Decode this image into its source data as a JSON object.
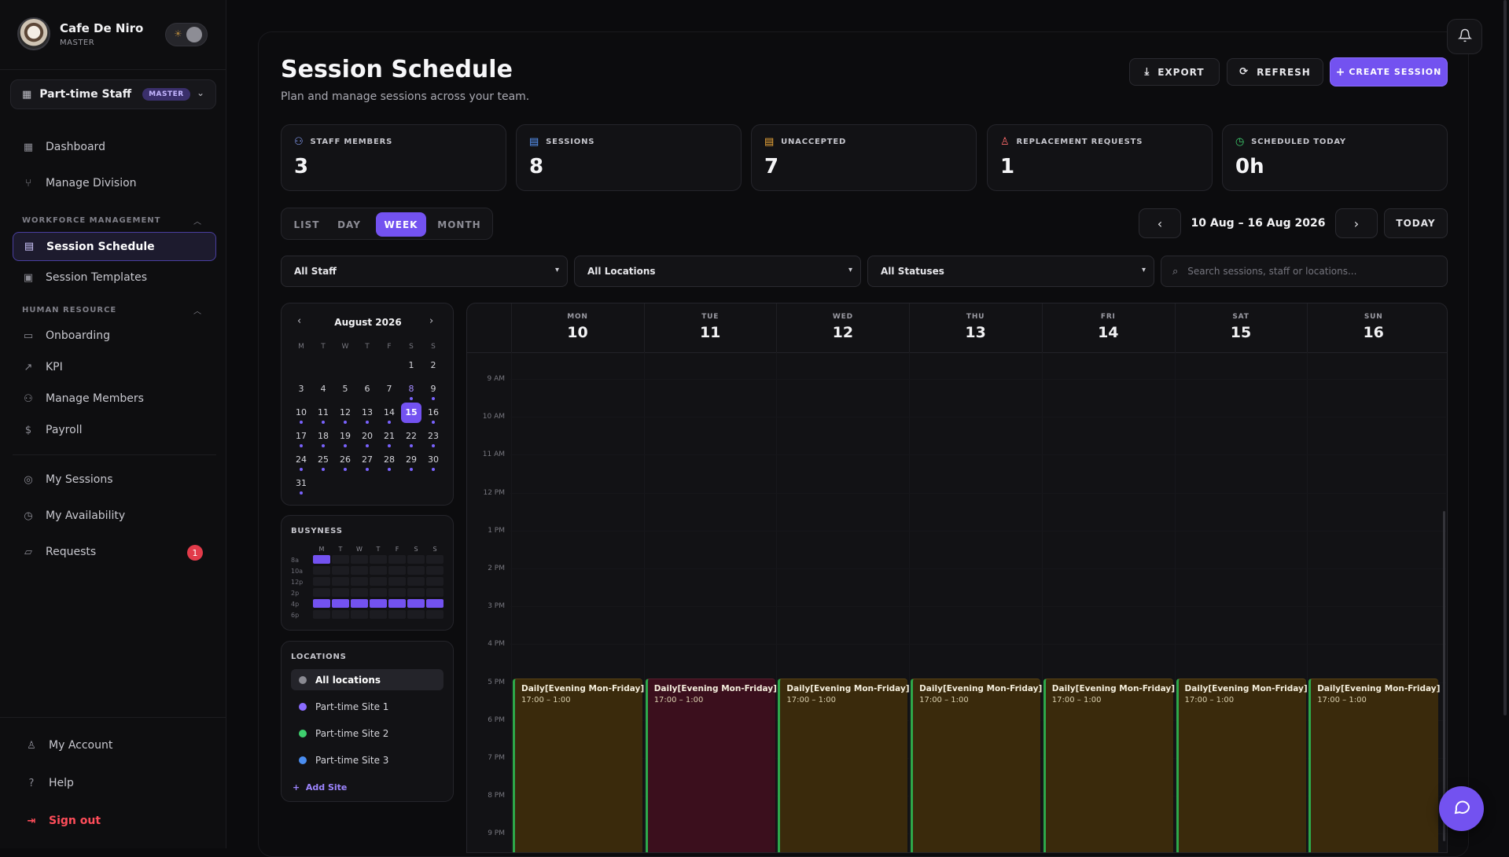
{
  "brand": {
    "name": "Cafe De Niro",
    "role": "MASTER"
  },
  "workspace": {
    "label": "Part-time Staff",
    "badge": "MASTER"
  },
  "nav": {
    "dashboard": "Dashboard",
    "manage_division": "Manage Division",
    "section_workforce": "WORKFORCE MANAGEMENT",
    "session_schedule": "Session Schedule",
    "session_templates": "Session Templates",
    "section_hr": "HUMAN RESOURCE",
    "onboarding": "Onboarding",
    "kpi": "KPI",
    "manage_members": "Manage Members",
    "payroll": "Payroll",
    "my_sessions": "My Sessions",
    "my_availability": "My Availability",
    "requests": "Requests",
    "requests_count": "1",
    "my_account": "My Account",
    "help": "Help",
    "sign_out": "Sign out"
  },
  "header": {
    "title": "Session Schedule",
    "subtitle": "Plan and manage sessions across your team.",
    "export": "EXPORT",
    "refresh": "REFRESH",
    "create": "CREATE SESSION"
  },
  "stats": [
    {
      "label": "STAFF MEMBERS",
      "value": "3",
      "icon": "users-icon",
      "color": "#8aa4ff"
    },
    {
      "label": "SESSIONS",
      "value": "8",
      "icon": "calendar-icon",
      "color": "#5b9bff"
    },
    {
      "label": "UNACCEPTED",
      "value": "7",
      "icon": "calendar-clock-icon",
      "color": "#f0a93a"
    },
    {
      "label": "REPLACEMENT REQUESTS",
      "value": "1",
      "icon": "user-icon",
      "color": "#ff6b6b"
    },
    {
      "label": "SCHEDULED TODAY",
      "value": "0h",
      "icon": "clock-icon",
      "color": "#3ecf6e"
    }
  ],
  "views": {
    "list": "LIST",
    "day": "DAY",
    "week": "WEEK",
    "month": "MONTH",
    "active": "WEEK"
  },
  "range": {
    "label": "10 Aug – 16 Aug 2026",
    "today": "TODAY"
  },
  "filters": {
    "staff": "All Staff",
    "locations": "All Locations",
    "statuses": "All Statuses",
    "search_placeholder": "Search sessions, staff or locations..."
  },
  "mini_calendar": {
    "month": "August 2026",
    "dow": [
      "M",
      "T",
      "W",
      "T",
      "F",
      "S",
      "S"
    ],
    "weeks": [
      [
        "",
        "",
        "",
        "",
        "",
        "1",
        "2"
      ],
      [
        "3",
        "4",
        "5",
        "6",
        "7",
        "8",
        "9"
      ],
      [
        "10",
        "11",
        "12",
        "13",
        "14",
        "15",
        "16"
      ],
      [
        "17",
        "18",
        "19",
        "20",
        "21",
        "22",
        "23"
      ],
      [
        "24",
        "25",
        "26",
        "27",
        "28",
        "29",
        "30"
      ],
      [
        "31",
        "",
        "",
        "",
        "",
        "",
        ""
      ]
    ],
    "selected": "15",
    "highlighted": [
      "8"
    ],
    "dotted_from": 8
  },
  "busyness": {
    "title": "BUSYNESS",
    "dow": [
      "M",
      "T",
      "W",
      "T",
      "F",
      "S",
      "S"
    ],
    "rows": [
      "8a",
      "10a",
      "12p",
      "2p",
      "4p",
      "6p"
    ],
    "active": [
      [
        1,
        0,
        0,
        0,
        0,
        0,
        0
      ],
      [
        0,
        0,
        0,
        0,
        0,
        0,
        0
      ],
      [
        0,
        0,
        0,
        0,
        0,
        0,
        0
      ],
      [
        0,
        0,
        0,
        0,
        0,
        0,
        0
      ],
      [
        1,
        1,
        1,
        1,
        1,
        1,
        1
      ],
      [
        0,
        0,
        0,
        0,
        0,
        0,
        0
      ]
    ]
  },
  "locations": {
    "title": "LOCATIONS",
    "items": [
      {
        "name": "All locations",
        "color": "#8a8a92"
      },
      {
        "name": "Part-time Site 1",
        "color": "#8a6cff"
      },
      {
        "name": "Part-time Site 2",
        "color": "#3ecf6e"
      },
      {
        "name": "Part-time Site 3",
        "color": "#4a8df0"
      }
    ],
    "add": "Add Site"
  },
  "week": {
    "days": [
      {
        "dow": "MON",
        "num": "10"
      },
      {
        "dow": "TUE",
        "num": "11"
      },
      {
        "dow": "WED",
        "num": "12"
      },
      {
        "dow": "THU",
        "num": "13"
      },
      {
        "dow": "FRI",
        "num": "14"
      },
      {
        "dow": "SAT",
        "num": "15"
      },
      {
        "dow": "SUN",
        "num": "16"
      }
    ],
    "hours": [
      "9 AM",
      "10 AM",
      "11 AM",
      "12 PM",
      "1 PM",
      "2 PM",
      "3 PM",
      "4 PM",
      "5 PM",
      "6 PM",
      "7 PM",
      "8 PM",
      "9 PM"
    ],
    "events": [
      {
        "title": "Daily[Evening Mon-Friday]",
        "time": "17:00 – 1:00",
        "status": "unaccepted"
      },
      {
        "title": "Daily[Evening Mon-Friday]",
        "time": "17:00 – 1:00",
        "status": "replacement"
      },
      {
        "title": "Daily[Evening Mon-Friday]",
        "time": "17:00 – 1:00",
        "status": "unaccepted"
      },
      {
        "title": "Daily[Evening Mon-Friday]",
        "time": "17:00 – 1:00",
        "status": "unaccepted"
      },
      {
        "title": "Daily[Evening Mon-Friday]",
        "time": "17:00 – 1:00",
        "status": "unaccepted"
      },
      {
        "title": "Daily[Evening Mon-Friday]",
        "time": "17:00 – 1:00",
        "status": "unaccepted"
      },
      {
        "title": "Daily[Evening Mon-Friday]",
        "time": "17:00 – 1:00",
        "status": "unaccepted"
      }
    ]
  },
  "colors": {
    "accent": "#7352f0",
    "event_unaccepted": "#3a2a0c",
    "event_replacement": "#3b0f1d",
    "event_border": "#2ea84a"
  }
}
